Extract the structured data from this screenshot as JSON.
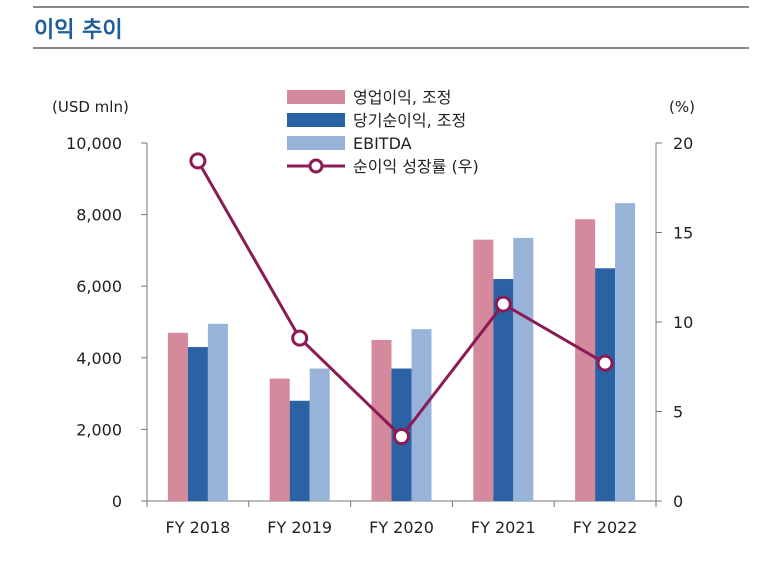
{
  "header": {
    "title": "이익 추이"
  },
  "chart_data": {
    "type": "bar",
    "title": "",
    "categories": [
      "FY 2018",
      "FY 2019",
      "FY 2020",
      "FY 2021",
      "FY 2022"
    ],
    "series": [
      {
        "name": "영업이익, 조정",
        "values": [
          4700,
          3420,
          4500,
          7300,
          7870
        ],
        "color": "#d4899c"
      },
      {
        "name": "당기순이익, 조정",
        "values": [
          4300,
          2800,
          3700,
          6200,
          6500
        ],
        "color": "#2b62a3"
      },
      {
        "name": "EBITDA",
        "values": [
          4950,
          3700,
          4800,
          7350,
          8320
        ],
        "color": "#97b4d8"
      }
    ],
    "line_series": {
      "name": "순이익 성장률 (우)",
      "values": [
        19.0,
        9.1,
        3.6,
        11.0,
        7.7
      ],
      "color": "#8b1a55",
      "axis": "right"
    },
    "left_axis": {
      "unit_label": "(USD mln)",
      "min": 0,
      "max": 10000,
      "ticks": [
        "0",
        "2,000",
        "4,000",
        "6,000",
        "8,000",
        "10,000"
      ]
    },
    "right_axis": {
      "unit_label": "(%)",
      "min": 0,
      "max": 20,
      "ticks": [
        "0",
        "5",
        "10",
        "15",
        "20"
      ]
    },
    "legend_position": "top-center",
    "grid": false
  }
}
